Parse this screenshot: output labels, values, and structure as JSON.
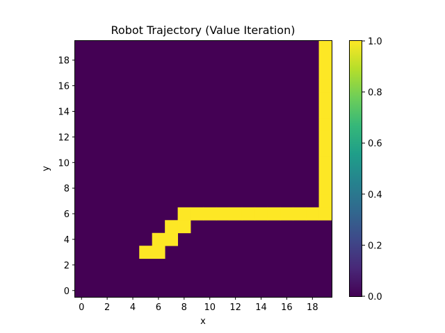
{
  "chart_data": {
    "type": "heatmap",
    "title": "Robot Trajectory (Value Iteration)",
    "xlabel": "x",
    "ylabel": "y",
    "grid": false,
    "grid_size": [
      20,
      20
    ],
    "xlim": [
      -0.5,
      19.5
    ],
    "ylim": [
      -0.5,
      19.5
    ],
    "x_ticks": [
      0,
      2,
      4,
      6,
      8,
      10,
      12,
      14,
      16,
      18
    ],
    "y_ticks": [
      0,
      2,
      4,
      6,
      8,
      10,
      12,
      14,
      16,
      18
    ],
    "low_value": 0,
    "high_value": 1,
    "low_color": "#440154",
    "high_color": "#fde725",
    "colorbar": {
      "range": [
        0.0,
        1.0
      ],
      "ticks": [
        "0.0",
        "0.2",
        "0.4",
        "0.6",
        "0.8",
        "1.0"
      ],
      "colormap": "viridis",
      "stops": [
        "#440154",
        "#482878",
        "#3e4989",
        "#31688e",
        "#26828e",
        "#1f9e89",
        "#35b779",
        "#6ece58",
        "#b5de2b",
        "#fde725"
      ],
      "placement": "right"
    },
    "trajectory_cells": [
      [
        5,
        3
      ],
      [
        6,
        3
      ],
      [
        6,
        4
      ],
      [
        7,
        4
      ],
      [
        7,
        5
      ],
      [
        8,
        5
      ],
      [
        8,
        6
      ],
      [
        9,
        6
      ],
      [
        10,
        6
      ],
      [
        11,
        6
      ],
      [
        12,
        6
      ],
      [
        13,
        6
      ],
      [
        14,
        6
      ],
      [
        15,
        6
      ],
      [
        16,
        6
      ],
      [
        17,
        6
      ],
      [
        18,
        6
      ],
      [
        19,
        6
      ],
      [
        19,
        7
      ],
      [
        19,
        8
      ],
      [
        19,
        9
      ],
      [
        19,
        10
      ],
      [
        19,
        11
      ],
      [
        19,
        12
      ],
      [
        19,
        13
      ],
      [
        19,
        14
      ],
      [
        19,
        15
      ],
      [
        19,
        16
      ],
      [
        19,
        17
      ],
      [
        19,
        18
      ],
      [
        19,
        19
      ]
    ]
  }
}
